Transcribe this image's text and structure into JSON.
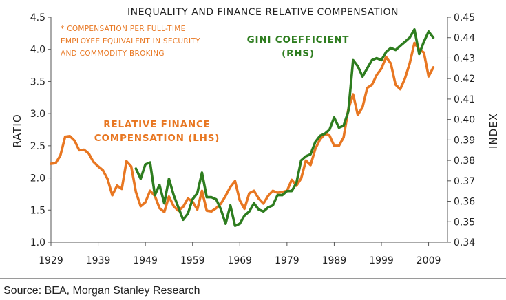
{
  "chart_data": {
    "type": "line",
    "title": "INEQUALITY AND FINANCE RELATIVE COMPENSATION",
    "note": [
      "* COMPENSATION PER FULL-TIME",
      "EMPLOYEE EQUIVALENT IN SECURITY",
      "AND COMMODITY BROKING"
    ],
    "ylabel": "RATIO",
    "y2label": "INDEX",
    "xticks": [
      "1929",
      "1939",
      "1949",
      "1959",
      "1969",
      "1979",
      "1989",
      "1999",
      "2009"
    ],
    "xlim": [
      1929,
      2013
    ],
    "ylim": [
      1.0,
      4.5
    ],
    "yticks": [
      "1.0",
      "1.5",
      "2.0",
      "2.5",
      "3.0",
      "3.5",
      "4.0",
      "4.5"
    ],
    "y2lim": [
      0.34,
      0.45
    ],
    "y2ticks": [
      "0.34",
      "0.35",
      "0.36",
      "0.37",
      "0.38",
      "0.39",
      "0.40",
      "0.41",
      "0.42",
      "0.43",
      "0.44",
      "0.45"
    ],
    "series": [
      {
        "name": "RELATIVE FINANCE COMPENSATION (LHS)",
        "axis": "left",
        "color": "#E87722",
        "label": [
          "RELATIVE FINANCE",
          "COMPENSATION (LHS)"
        ],
        "x": [
          1929,
          1930,
          1931,
          1932,
          1933,
          1934,
          1935,
          1936,
          1937,
          1938,
          1939,
          1940,
          1941,
          1942,
          1943,
          1944,
          1945,
          1946,
          1947,
          1948,
          1949,
          1950,
          1951,
          1952,
          1953,
          1954,
          1955,
          1956,
          1957,
          1958,
          1959,
          1960,
          1961,
          1962,
          1963,
          1964,
          1965,
          1966,
          1967,
          1968,
          1969,
          1970,
          1971,
          1972,
          1973,
          1974,
          1975,
          1976,
          1977,
          1978,
          1979,
          1980,
          1981,
          1982,
          1983,
          1984,
          1985,
          1986,
          1987,
          1988,
          1989,
          1990,
          1991,
          1992,
          1993,
          1994,
          1995,
          1996,
          1997,
          1998,
          1999,
          2000,
          2001,
          2002,
          2003,
          2004,
          2005,
          2006,
          2007,
          2008,
          2009,
          2010
        ],
        "values": [
          2.22,
          2.23,
          2.35,
          2.64,
          2.65,
          2.58,
          2.43,
          2.44,
          2.38,
          2.25,
          2.18,
          2.12,
          1.98,
          1.73,
          1.88,
          1.83,
          2.26,
          2.18,
          1.78,
          1.56,
          1.62,
          1.8,
          1.72,
          1.53,
          1.47,
          1.71,
          1.56,
          1.49,
          1.55,
          1.68,
          1.63,
          1.51,
          1.8,
          1.49,
          1.48,
          1.53,
          1.6,
          1.72,
          1.86,
          1.95,
          1.65,
          1.52,
          1.76,
          1.8,
          1.68,
          1.6,
          1.72,
          1.8,
          1.77,
          1.78,
          1.8,
          1.97,
          1.88,
          1.99,
          2.27,
          2.2,
          2.45,
          2.6,
          2.68,
          2.66,
          2.5,
          2.5,
          2.63,
          3.07,
          3.3,
          2.98,
          3.1,
          3.4,
          3.45,
          3.6,
          3.7,
          3.88,
          3.78,
          3.45,
          3.38,
          3.55,
          3.78,
          4.1,
          4.0,
          3.95,
          3.58,
          3.72
        ]
      },
      {
        "name": "GINI COEFFICIENT (RHS)",
        "axis": "right",
        "color": "#2E7D1F",
        "label": [
          "GINI COEFFICIENT",
          "(RHS)"
        ],
        "x": [
          1947,
          1948,
          1949,
          1950,
          1951,
          1952,
          1953,
          1954,
          1955,
          1956,
          1957,
          1958,
          1959,
          1960,
          1961,
          1962,
          1963,
          1964,
          1965,
          1966,
          1967,
          1968,
          1969,
          1970,
          1971,
          1972,
          1973,
          1974,
          1975,
          1976,
          1977,
          1978,
          1979,
          1980,
          1981,
          1982,
          1983,
          1984,
          1985,
          1986,
          1987,
          1988,
          1989,
          1990,
          1991,
          1992,
          1993,
          1994,
          1995,
          1996,
          1997,
          1998,
          1999,
          2000,
          2001,
          2002,
          2003,
          2004,
          2005,
          2006,
          2007,
          2008,
          2009,
          2010
        ],
        "values": [
          0.376,
          0.371,
          0.378,
          0.379,
          0.363,
          0.368,
          0.359,
          0.371,
          0.363,
          0.357,
          0.351,
          0.354,
          0.361,
          0.364,
          0.374,
          0.362,
          0.362,
          0.361,
          0.356,
          0.349,
          0.358,
          0.348,
          0.349,
          0.353,
          0.355,
          0.359,
          0.356,
          0.355,
          0.357,
          0.358,
          0.363,
          0.363,
          0.365,
          0.365,
          0.369,
          0.38,
          0.382,
          0.383,
          0.389,
          0.392,
          0.393,
          0.395,
          0.401,
          0.396,
          0.397,
          0.404,
          0.429,
          0.426,
          0.421,
          0.425,
          0.429,
          0.43,
          0.429,
          0.433,
          0.435,
          0.434,
          0.436,
          0.438,
          0.44,
          0.444,
          0.432,
          0.438,
          0.443,
          0.44
        ]
      }
    ]
  },
  "source": "Source: BEA, Morgan Stanley Research"
}
